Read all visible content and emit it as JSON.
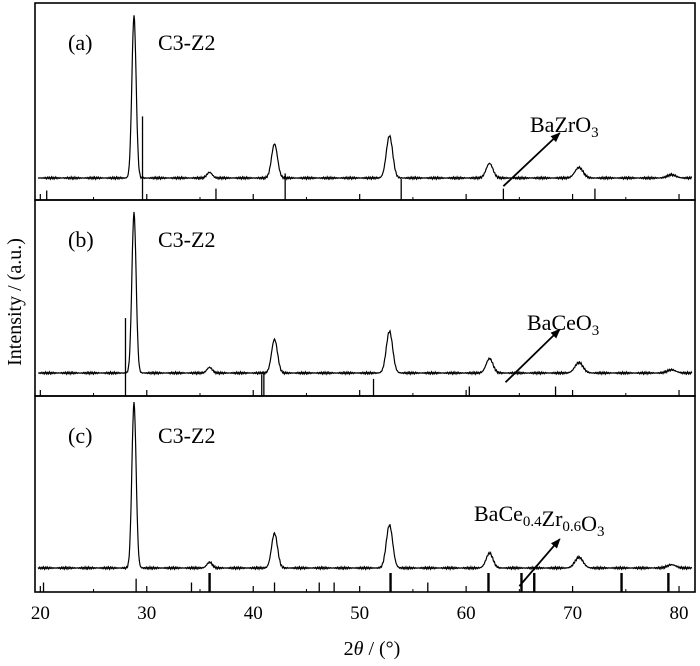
{
  "chart_data": {
    "type": "line",
    "xlabel_prefix": "2",
    "xlabel_theta": "θ",
    "xlabel_suffix": " / (°)",
    "ylabel": "Intensity / (a.u.)",
    "xlim": [
      19.5,
      81.5
    ],
    "xticks": [
      20,
      30,
      40,
      50,
      60,
      70,
      80
    ],
    "colors": {
      "line": "#000000",
      "arrow": "#000000"
    },
    "panels": [
      {
        "tag": "(a)",
        "sample": "C3-Z2",
        "phase": {
          "base": "Ba",
          "parts": [
            {
              "t": "BaZrO"
            },
            {
              "t": "3",
              "sub": true
            }
          ]
        },
        "phase_label": "BaZrO3",
        "arrow_from": [
          63.5,
          0.07
        ],
        "arrow_to": [
          68.8,
          0.34
        ],
        "peaks": [
          {
            "x": 28.8,
            "h": 1.0,
            "w": 0.2
          },
          {
            "x": 35.9,
            "h": 0.035,
            "w": 0.25
          },
          {
            "x": 42.0,
            "h": 0.21,
            "w": 0.28
          },
          {
            "x": 52.8,
            "h": 0.26,
            "w": 0.3
          },
          {
            "x": 62.2,
            "h": 0.09,
            "w": 0.32
          },
          {
            "x": 70.6,
            "h": 0.065,
            "w": 0.38
          },
          {
            "x": 79.3,
            "h": 0.02,
            "w": 0.4
          }
        ],
        "refs": [
          {
            "x": 20.6,
            "h": 0.05
          },
          {
            "x": 29.6,
            "h": 0.44
          },
          {
            "x": 36.5,
            "h": 0.06
          },
          {
            "x": 43.0,
            "h": 0.14
          },
          {
            "x": 53.9,
            "h": 0.11
          },
          {
            "x": 63.5,
            "h": 0.06
          },
          {
            "x": 72.1,
            "h": 0.06
          }
        ]
      },
      {
        "tag": "(b)",
        "sample": "C3-Z2",
        "phase_label": "BaCeO3",
        "arrow_from": [
          63.7,
          0.07
        ],
        "arrow_to": [
          68.8,
          0.34
        ],
        "peaks": [
          {
            "x": 28.8,
            "h": 1.0,
            "w": 0.2
          },
          {
            "x": 35.9,
            "h": 0.035,
            "w": 0.25
          },
          {
            "x": 42.0,
            "h": 0.21,
            "w": 0.28
          },
          {
            "x": 52.8,
            "h": 0.26,
            "w": 0.3
          },
          {
            "x": 62.2,
            "h": 0.09,
            "w": 0.32
          },
          {
            "x": 70.6,
            "h": 0.065,
            "w": 0.38
          },
          {
            "x": 79.3,
            "h": 0.02,
            "w": 0.4
          }
        ],
        "refs": [
          {
            "x": 28.0,
            "h": 0.41
          },
          {
            "x": 40.8,
            "h": 0.11
          },
          {
            "x": 41.0,
            "h": 0.12
          },
          {
            "x": 51.3,
            "h": 0.09
          },
          {
            "x": 60.3,
            "h": 0.05
          },
          {
            "x": 68.4,
            "h": 0.05
          }
        ]
      },
      {
        "tag": "(c)",
        "sample": "C3-Z2",
        "phase_label": "BaCe0.4Zr0.6O3",
        "arrow_from": [
          65.0,
          0.03
        ],
        "arrow_to": [
          68.8,
          0.27
        ],
        "peaks": [
          {
            "x": 28.8,
            "h": 1.0,
            "w": 0.2
          },
          {
            "x": 35.9,
            "h": 0.035,
            "w": 0.25
          },
          {
            "x": 42.0,
            "h": 0.21,
            "w": 0.28
          },
          {
            "x": 52.8,
            "h": 0.26,
            "w": 0.3
          },
          {
            "x": 62.2,
            "h": 0.09,
            "w": 0.32
          },
          {
            "x": 70.6,
            "h": 0.065,
            "w": 0.38
          },
          {
            "x": 79.3,
            "h": 0.02,
            "w": 0.4
          }
        ],
        "refs": [
          {
            "x": 20.3,
            "h": 0.05
          },
          {
            "x": 29.0,
            "h": 0.07
          },
          {
            "x": 34.2,
            "h": 0.05
          },
          {
            "x": 35.9,
            "h": 0.1
          },
          {
            "x": 42.0,
            "h": 0.05
          },
          {
            "x": 46.2,
            "h": 0.05
          },
          {
            "x": 47.6,
            "h": 0.05
          },
          {
            "x": 52.9,
            "h": 0.1
          },
          {
            "x": 56.4,
            "h": 0.05
          },
          {
            "x": 62.1,
            "h": 0.1
          },
          {
            "x": 65.2,
            "h": 0.1
          },
          {
            "x": 66.4,
            "h": 0.1
          },
          {
            "x": 74.6,
            "h": 0.1
          },
          {
            "x": 79.0,
            "h": 0.1
          }
        ]
      }
    ]
  }
}
